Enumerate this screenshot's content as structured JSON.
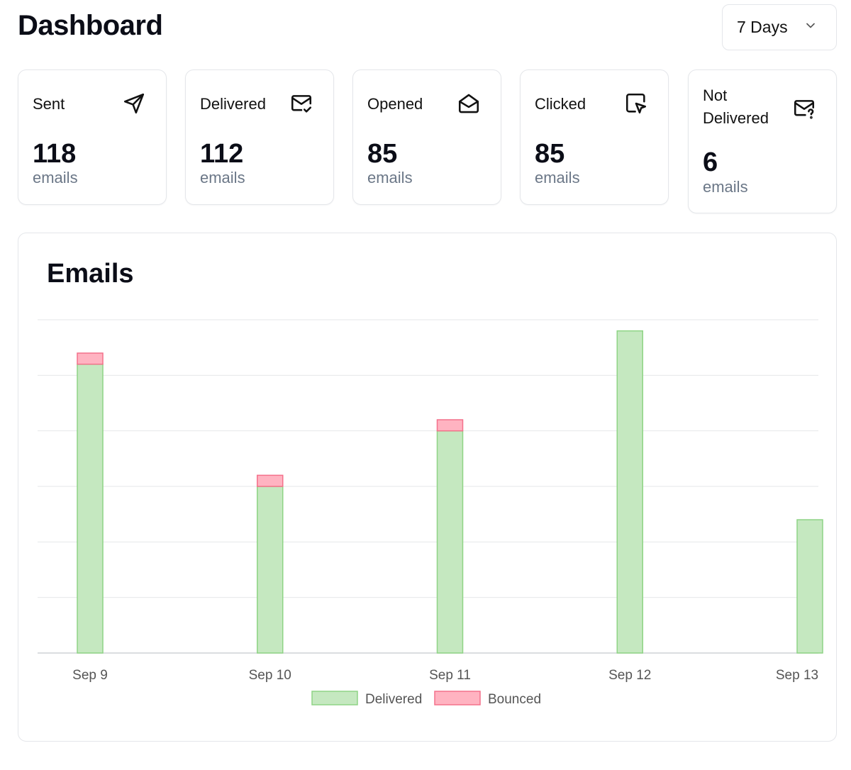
{
  "header": {
    "title": "Dashboard",
    "range_select": {
      "value": "7 Days",
      "icon": "chevron-down-icon"
    }
  },
  "cards": [
    {
      "label": "Sent",
      "value": "118",
      "unit": "emails",
      "icon": "paper-plane-icon"
    },
    {
      "label": "Delivered",
      "value": "112",
      "unit": "emails",
      "icon": "mail-check-icon"
    },
    {
      "label": "Opened",
      "value": "85",
      "unit": "emails",
      "icon": "mail-open-icon"
    },
    {
      "label": "Clicked",
      "value": "85",
      "unit": "emails",
      "icon": "cursor-click-icon"
    },
    {
      "label": "Not Delivered",
      "value": "6",
      "unit": "emails",
      "icon": "mail-question-icon"
    }
  ],
  "chart": {
    "title": "Emails"
  },
  "chart_data": {
    "type": "bar",
    "stacked": true,
    "categories": [
      "Sep 9",
      "Sep 10",
      "Sep 11",
      "Sep 12",
      "Sep 13"
    ],
    "series": [
      {
        "name": "Delivered",
        "values": [
          26,
          15,
          20,
          29,
          12
        ],
        "color": "#c5e8c0",
        "border": "#8fd485"
      },
      {
        "name": "Bounced",
        "values": [
          1,
          1,
          1,
          0,
          0
        ],
        "color": "#ffb3c1",
        "border": "#f4718b"
      }
    ],
    "ylim": [
      0,
      30
    ],
    "grid": true,
    "legend": "bottom"
  }
}
